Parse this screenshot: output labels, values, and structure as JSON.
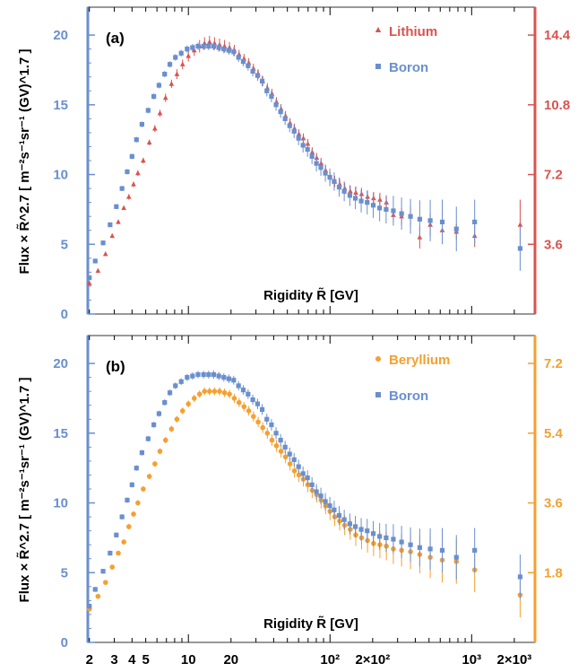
{
  "colors": {
    "boron": "#6a8fcf",
    "lithium": "#d9534f",
    "beryllium": "#f5a030",
    "frame": "#333333"
  },
  "x_axis_label": "Rigidity R̃ [GV]",
  "x_tick_labels": [
    "2",
    "3",
    "4",
    "5",
    "10",
    "20",
    "10²",
    "2×10²",
    "10³",
    "2×10³"
  ],
  "chart_data": [
    {
      "type": "scatter",
      "panel_label": "(a)",
      "xlabel": "Rigidity R̃ [GV]",
      "ylabel": "Flux × R̃^2.7 [ m⁻²s⁻¹sr⁻¹ (GV)^1.7 ]",
      "xscale": "log",
      "xlim": [
        1.95,
        2800
      ],
      "ylim": [
        0,
        22
      ],
      "y_ticks": [
        "0",
        "5",
        "10",
        "15",
        "20"
      ],
      "right_axis": {
        "color": "lithium",
        "ylim": [
          0,
          15.84
        ],
        "ticks": [
          "3.6",
          "7.2",
          "10.8",
          "14.4"
        ]
      },
      "legend": [
        "Lithium",
        "Boron"
      ],
      "legend_position": "top-right",
      "series": [
        {
          "name": "Lithium",
          "marker": "triangle",
          "color": "lithium",
          "x": [
            2.0,
            2.3,
            2.6,
            2.9,
            3.2,
            3.5,
            3.8,
            4.1,
            4.4,
            4.8,
            5.3,
            5.8,
            6.3,
            6.9,
            7.6,
            8.3,
            9.1,
            10.0,
            11.0,
            12.0,
            13.0,
            14.1,
            15.3,
            16.6,
            18.0,
            19.5,
            21.1,
            22.8,
            24.7,
            26.7,
            28.8,
            31.1,
            33.5,
            36.1,
            38.9,
            41.9,
            45.1,
            48.5,
            52.2,
            56.1,
            60.3,
            64.8,
            69.7,
            74.9,
            80.5,
            86.5,
            93.0,
            100.0,
            108.0,
            117.0,
            127.0,
            139.0,
            152.0,
            167.0,
            184.0,
            203.0,
            225.0,
            250.0,
            280.0,
            320.0,
            370.0,
            430.0,
            510.0,
            620.0,
            780.0,
            1050.0,
            2200.0
          ],
          "y": [
            2.2,
            3.1,
            4.3,
            5.6,
            6.6,
            7.6,
            8.4,
            9.3,
            10.1,
            11.0,
            12.3,
            13.3,
            14.4,
            15.5,
            16.5,
            17.2,
            17.9,
            18.5,
            18.9,
            19.2,
            19.4,
            19.5,
            19.4,
            19.3,
            19.2,
            19.1,
            18.9,
            18.6,
            18.3,
            18.0,
            17.6,
            17.2,
            16.7,
            16.2,
            15.8,
            15.2,
            14.7,
            14.2,
            13.7,
            13.3,
            12.9,
            12.6,
            12.2,
            11.6,
            11.2,
            10.8,
            10.3,
            9.8,
            9.5,
            9.3,
            9.0,
            8.8,
            8.7,
            8.6,
            8.4,
            8.3,
            8.2,
            8.0,
            7.1,
            7.0,
            7.0,
            5.5,
            6.4,
            6.0,
            5.9,
            5.6,
            6.4
          ],
          "yerr": [
            0.15,
            0.15,
            0.15,
            0.15,
            0.15,
            0.15,
            0.2,
            0.2,
            0.2,
            0.2,
            0.2,
            0.25,
            0.25,
            0.3,
            0.3,
            0.35,
            0.35,
            0.4,
            0.4,
            0.45,
            0.45,
            0.45,
            0.45,
            0.45,
            0.45,
            0.4,
            0.4,
            0.35,
            0.35,
            0.35,
            0.35,
            0.35,
            0.35,
            0.35,
            0.35,
            0.35,
            0.35,
            0.35,
            0.35,
            0.35,
            0.35,
            0.35,
            0.35,
            0.35,
            0.35,
            0.4,
            0.4,
            0.4,
            0.4,
            0.4,
            0.4,
            0.4,
            0.45,
            0.45,
            0.45,
            0.45,
            0.5,
            0.5,
            0.5,
            0.6,
            0.7,
            0.8,
            0.8,
            0.8,
            0.6,
            0.8,
            1.8
          ]
        },
        {
          "name": "Boron",
          "marker": "square",
          "color": "boron",
          "x": [
            2.0,
            2.2,
            2.5,
            2.8,
            3.1,
            3.4,
            3.7,
            4.0,
            4.3,
            4.7,
            5.2,
            5.7,
            6.2,
            6.8,
            7.4,
            8.1,
            8.9,
            9.8,
            10.7,
            11.7,
            12.8,
            13.9,
            15.1,
            16.4,
            17.8,
            19.3,
            20.9,
            22.6,
            24.4,
            26.4,
            28.5,
            30.8,
            33.2,
            35.8,
            38.6,
            41.6,
            44.8,
            48.2,
            51.9,
            55.8,
            60.0,
            64.5,
            69.4,
            74.6,
            80.2,
            86.2,
            92.7,
            99.7,
            107.0,
            116.0,
            126.0,
            138.0,
            151.0,
            166.0,
            183.0,
            202.0,
            224.0,
            249.0,
            280.0,
            320.0,
            370.0,
            430.0,
            510.0,
            620.0,
            780.0,
            1050.0,
            2200.0
          ],
          "y": [
            2.6,
            3.8,
            5.1,
            6.4,
            7.7,
            9.0,
            10.2,
            11.3,
            12.5,
            13.6,
            14.6,
            15.6,
            16.4,
            17.2,
            17.9,
            18.4,
            18.7,
            19.0,
            19.1,
            19.2,
            19.2,
            19.2,
            19.2,
            19.1,
            19.0,
            18.9,
            18.8,
            18.4,
            18.1,
            17.8,
            17.4,
            17.1,
            16.7,
            16.0,
            15.6,
            15.0,
            14.5,
            14.0,
            13.5,
            13.1,
            12.6,
            12.1,
            11.8,
            11.3,
            10.8,
            10.5,
            10.1,
            9.8,
            9.5,
            9.1,
            8.8,
            8.5,
            8.3,
            8.1,
            8.0,
            7.8,
            7.6,
            7.5,
            7.4,
            7.2,
            7.0,
            6.8,
            6.7,
            6.6,
            6.1,
            6.6,
            4.7
          ]
        }
      ]
    },
    {
      "type": "scatter",
      "panel_label": "(b)",
      "xlabel": "Rigidity R̃ [GV]",
      "ylabel": "Flux × R̃^2.7 [ m⁻²s⁻¹sr⁻¹ (GV)^1.7 ]",
      "xscale": "log",
      "xlim": [
        1.95,
        2800
      ],
      "ylim": [
        0,
        22
      ],
      "y_ticks": [
        "0",
        "5",
        "10",
        "15",
        "20"
      ],
      "right_axis": {
        "color": "beryllium",
        "ylim": [
          0,
          7.92
        ],
        "ticks": [
          "1.8",
          "3.6",
          "5.4",
          "7.2"
        ]
      },
      "legend": [
        "Beryllium",
        "Boron"
      ],
      "legend_position": "top-right",
      "series": [
        {
          "name": "Beryllium",
          "marker": "circle",
          "color": "beryllium",
          "x": [
            2.0,
            2.3,
            2.6,
            2.9,
            3.2,
            3.5,
            3.8,
            4.1,
            4.4,
            4.8,
            5.3,
            5.8,
            6.3,
            6.9,
            7.6,
            8.3,
            9.1,
            10.0,
            11.0,
            12.0,
            13.0,
            14.1,
            15.3,
            16.6,
            18.0,
            19.5,
            21.1,
            22.8,
            24.7,
            26.7,
            28.8,
            31.1,
            33.5,
            36.1,
            38.9,
            41.9,
            45.1,
            48.5,
            52.2,
            56.1,
            60.3,
            64.8,
            69.7,
            74.9,
            80.5,
            86.5,
            93.0,
            100.0,
            108.0,
            117.0,
            127.0,
            139.0,
            152.0,
            167.0,
            184.0,
            203.0,
            225.0,
            250.0,
            280.0,
            320.0,
            370.0,
            430.0,
            510.0,
            620.0,
            780.0,
            1050.0,
            2200.0
          ],
          "y": [
            2.4,
            3.3,
            4.3,
            5.4,
            6.4,
            7.2,
            8.3,
            9.2,
            10.0,
            11.0,
            11.9,
            12.8,
            13.7,
            14.5,
            15.3,
            16.0,
            16.6,
            17.1,
            17.5,
            17.8,
            18.0,
            18.0,
            18.0,
            18.0,
            17.9,
            17.8,
            17.5,
            17.2,
            16.9,
            16.6,
            16.2,
            15.8,
            15.4,
            15.0,
            14.5,
            14.1,
            13.7,
            13.3,
            12.8,
            12.3,
            12.0,
            11.7,
            11.3,
            10.9,
            10.6,
            10.2,
            9.8,
            9.4,
            9.0,
            8.7,
            8.4,
            8.1,
            7.7,
            7.5,
            7.3,
            7.1,
            7.0,
            6.9,
            6.7,
            6.6,
            6.5,
            6.3,
            6.1,
            5.9,
            5.8,
            5.2,
            3.4
          ]
        },
        {
          "name": "Boron",
          "marker": "square",
          "color": "boron",
          "x": [
            2.0,
            2.2,
            2.5,
            2.8,
            3.1,
            3.4,
            3.7,
            4.0,
            4.3,
            4.7,
            5.2,
            5.7,
            6.2,
            6.8,
            7.4,
            8.1,
            8.9,
            9.8,
            10.7,
            11.7,
            12.8,
            13.9,
            15.1,
            16.4,
            17.8,
            19.3,
            20.9,
            22.6,
            24.4,
            26.4,
            28.5,
            30.8,
            33.2,
            35.8,
            38.6,
            41.6,
            44.8,
            48.2,
            51.9,
            55.8,
            60.0,
            64.5,
            69.4,
            74.6,
            80.2,
            86.2,
            92.7,
            99.7,
            107.0,
            116.0,
            126.0,
            138.0,
            151.0,
            166.0,
            183.0,
            202.0,
            224.0,
            249.0,
            280.0,
            320.0,
            370.0,
            430.0,
            510.0,
            620.0,
            780.0,
            1050.0,
            2200.0
          ],
          "y": [
            2.6,
            3.8,
            5.1,
            6.4,
            7.7,
            9.0,
            10.2,
            11.3,
            12.5,
            13.6,
            14.6,
            15.6,
            16.4,
            17.2,
            17.9,
            18.4,
            18.7,
            19.0,
            19.1,
            19.2,
            19.2,
            19.2,
            19.2,
            19.1,
            19.0,
            18.9,
            18.8,
            18.4,
            18.1,
            17.8,
            17.4,
            17.1,
            16.7,
            16.0,
            15.6,
            15.0,
            14.5,
            14.0,
            13.5,
            13.1,
            12.6,
            12.1,
            11.8,
            11.3,
            10.8,
            10.5,
            10.1,
            9.8,
            9.5,
            9.1,
            8.8,
            8.5,
            8.3,
            8.1,
            8.0,
            7.8,
            7.6,
            7.5,
            7.4,
            7.2,
            7.0,
            6.8,
            6.7,
            6.6,
            6.1,
            6.6,
            4.7
          ]
        }
      ]
    }
  ]
}
